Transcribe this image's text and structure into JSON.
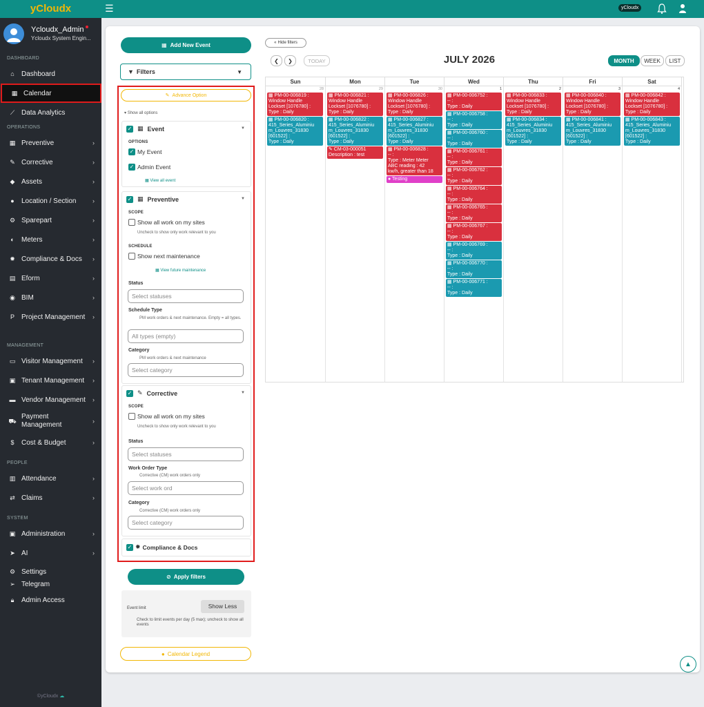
{
  "brand": "yCloudx",
  "topbar": {
    "badge": "yCloudx",
    "menu_icon": "hamburger-icon",
    "bell_icon": "bell-icon",
    "user_icon": "user-icon"
  },
  "profile": {
    "name": "Ycloudx_Admin",
    "role": "Ycloudx System Engin..."
  },
  "sidebar": {
    "sections": {
      "dashboard": "DASHBOARD",
      "operations": "OPERATIONS",
      "management": "MANAGEMENT",
      "people": "PEOPLE",
      "system": "SYSTEM"
    },
    "dashboard": [
      "Dashboard",
      "Calendar",
      "Data Analytics"
    ],
    "operations": [
      "Preventive",
      "Corrective",
      "Assets",
      "Location / Section",
      "Sparepart",
      "Meters",
      "Compliance & Docs",
      "Eform",
      "BIM",
      "Project Management"
    ],
    "management": [
      "Visitor Management",
      "Tenant Management",
      "Vendor Management",
      "Payment Management",
      "Cost & Budget"
    ],
    "people": [
      "Attendance",
      "Claims"
    ],
    "system": [
      "Administration",
      "AI",
      "Settings",
      "Telegram",
      "Admin Access"
    ],
    "footer": "©yCloudx"
  },
  "filters": {
    "add_event": "Add New Event",
    "filters_label": "Filters",
    "advance_option": "Advance Option",
    "show_all_options": "Show all options",
    "event": {
      "title": "Event",
      "options_label": "OPTIONS",
      "my_event": "My Event",
      "admin_event": "Admin Event",
      "view_all": "View all event"
    },
    "preventive": {
      "title": "Preventive",
      "scope_label": "SCOPE",
      "show_all_work": "Show all work on my sites",
      "scope_note": "Uncheck to show only work relevant to you",
      "schedule_label": "SCHEDULE",
      "show_next": "Show next maintenance",
      "view_future": "View future maintenance",
      "status_label": "Status",
      "status_placeholder": "Select statuses",
      "schedule_type_label": "Schedule Type",
      "schedule_type_note": "PM work orders & next maintenance. Empty = all types.",
      "schedule_type_placeholder": "All types (empty)",
      "category_label": "Category",
      "category_note": "PM work orders & next maintenance",
      "category_placeholder": "Select category"
    },
    "corrective": {
      "title": "Corrective",
      "scope_label": "SCOPE",
      "show_all_work": "Show all work on my sites",
      "scope_note": "Uncheck to show only work relevant to you",
      "status_label": "Status",
      "status_placeholder": "Select statuses",
      "wo_type_label": "Work Order Type",
      "wo_type_note": "Corrective (CM) work orders only",
      "wo_type_placeholder": "Select work ord",
      "category_label": "Category",
      "category_note": "Corrective (CM) work orders only",
      "category_placeholder": "Select category"
    },
    "compliance": {
      "title": "Compliance & Docs"
    },
    "apply": "Apply filters",
    "event_limit": "Event limit",
    "show_less": "Show Less",
    "limit_note": "Check to limit events per day (5 max); uncheck to show all events",
    "legend": "Calendar Legend"
  },
  "calendar": {
    "hide_filters": "Hide filters",
    "today": "TODAY",
    "title": "JULY 2026",
    "views": [
      "MONTH",
      "WEEK",
      "LIST"
    ],
    "days": [
      "Sun",
      "Mon",
      "Tue",
      "Wed",
      "Thu",
      "Fri",
      "Sat"
    ],
    "dates": [
      "28",
      "29",
      "30",
      "1",
      "2",
      "3",
      "4"
    ],
    "events": {
      "sun": [
        {
          "color": "red",
          "text": "PM-00-006819 :\nWindow Handle\nLockset [1076780] :\nType : Daily"
        },
        {
          "color": "teal",
          "text": "PM-00-006820 :\n415_Series_Aluminiu\nm_Louvres_31830\n[601522] :\nType : Daily"
        }
      ],
      "mon": [
        {
          "color": "red",
          "text": "PM-00-006821 :\nWindow Handle\nLockset [1076780] :\nType : Daily"
        },
        {
          "color": "teal",
          "text": "PM-00-006822 :\n415_Series_Aluminiu\nm_Louvres_31830\n[601522] :\nType : Daily"
        },
        {
          "color": "red",
          "text": "CM-03-000051\nDescription : test"
        }
      ],
      "tue": [
        {
          "color": "red",
          "text": "PM-00-006826 :\nWindow Handle\nLockset [1076780] :\nType : Daily"
        },
        {
          "color": "teal",
          "text": "PM-00-006827 :\n415_Series_Aluminiu\nm_Louvres_31830\n[601522] :\nType : Daily"
        },
        {
          "color": "red",
          "text": "PM-00-006828 :\n-- :\nType : Meter Meter\nABC reading : 42\nkw/h, greater than 18"
        },
        {
          "color": "pink",
          "text": "Testing"
        }
      ],
      "wed": [
        {
          "color": "red",
          "text": "PM-00-006752 :\n-- :\nType : Daily"
        },
        {
          "color": "teal",
          "text": "PM-00-006758 :\n-- :\nType : Daily"
        },
        {
          "color": "teal",
          "text": "PM-00-006760 :\n-- :\nType : Daily"
        },
        {
          "color": "red",
          "text": "PM-00-006761 :\n-- :\nType : Daily"
        },
        {
          "color": "red",
          "text": "PM-00-006762 :\n-- :\nType : Daily"
        },
        {
          "color": "red",
          "text": "PM-00-006764 :\n-- :\nType : Daily"
        },
        {
          "color": "red",
          "text": "PM-00-006765 :\n-- :\nType : Daily"
        },
        {
          "color": "red",
          "text": "PM-00-006767 :\n-- :\nType : Daily"
        },
        {
          "color": "teal",
          "text": "PM-00-006769 :\n-- :\nType : Daily"
        },
        {
          "color": "teal",
          "text": "PM-00-006770 :\n-- :\nType : Daily"
        },
        {
          "color": "teal",
          "text": "PM-00-006771 :\n-- :\nType : Daily"
        }
      ],
      "thu": [
        {
          "color": "red",
          "text": "PM-00-006833 :\nWindow Handle\nLockset [1076780] :\nType : Daily"
        },
        {
          "color": "teal",
          "text": "PM-00-006834 :\n415_Series_Aluminiu\nm_Louvres_31830\n[601522] :\nType : Daily"
        }
      ],
      "fri": [
        {
          "color": "red",
          "text": "PM-00-006840 :\nWindow Handle\nLockset [1076780] :\nType : Daily"
        },
        {
          "color": "teal",
          "text": "PM-00-006841 :\n415_Series_Aluminiu\nm_Louvres_31830\n[601522] :\nType : Daily"
        }
      ],
      "sat": [
        {
          "color": "red",
          "text": "PM-00-006842 :\nWindow Handle\nLockset [1076780] :\nType : Daily"
        },
        {
          "color": "teal",
          "text": "PM-00-006843 :\n415_Series_Aluminiu\nm_Louvres_31830\n[601522] :\nType : Daily"
        }
      ]
    }
  },
  "colors": {
    "brand": "#0e8f87",
    "accent": "#f2b705",
    "event_red": "#d9303e",
    "event_teal": "#1b9ab0",
    "event_pink": "#e040c8",
    "highlight": "#e01b1b"
  }
}
